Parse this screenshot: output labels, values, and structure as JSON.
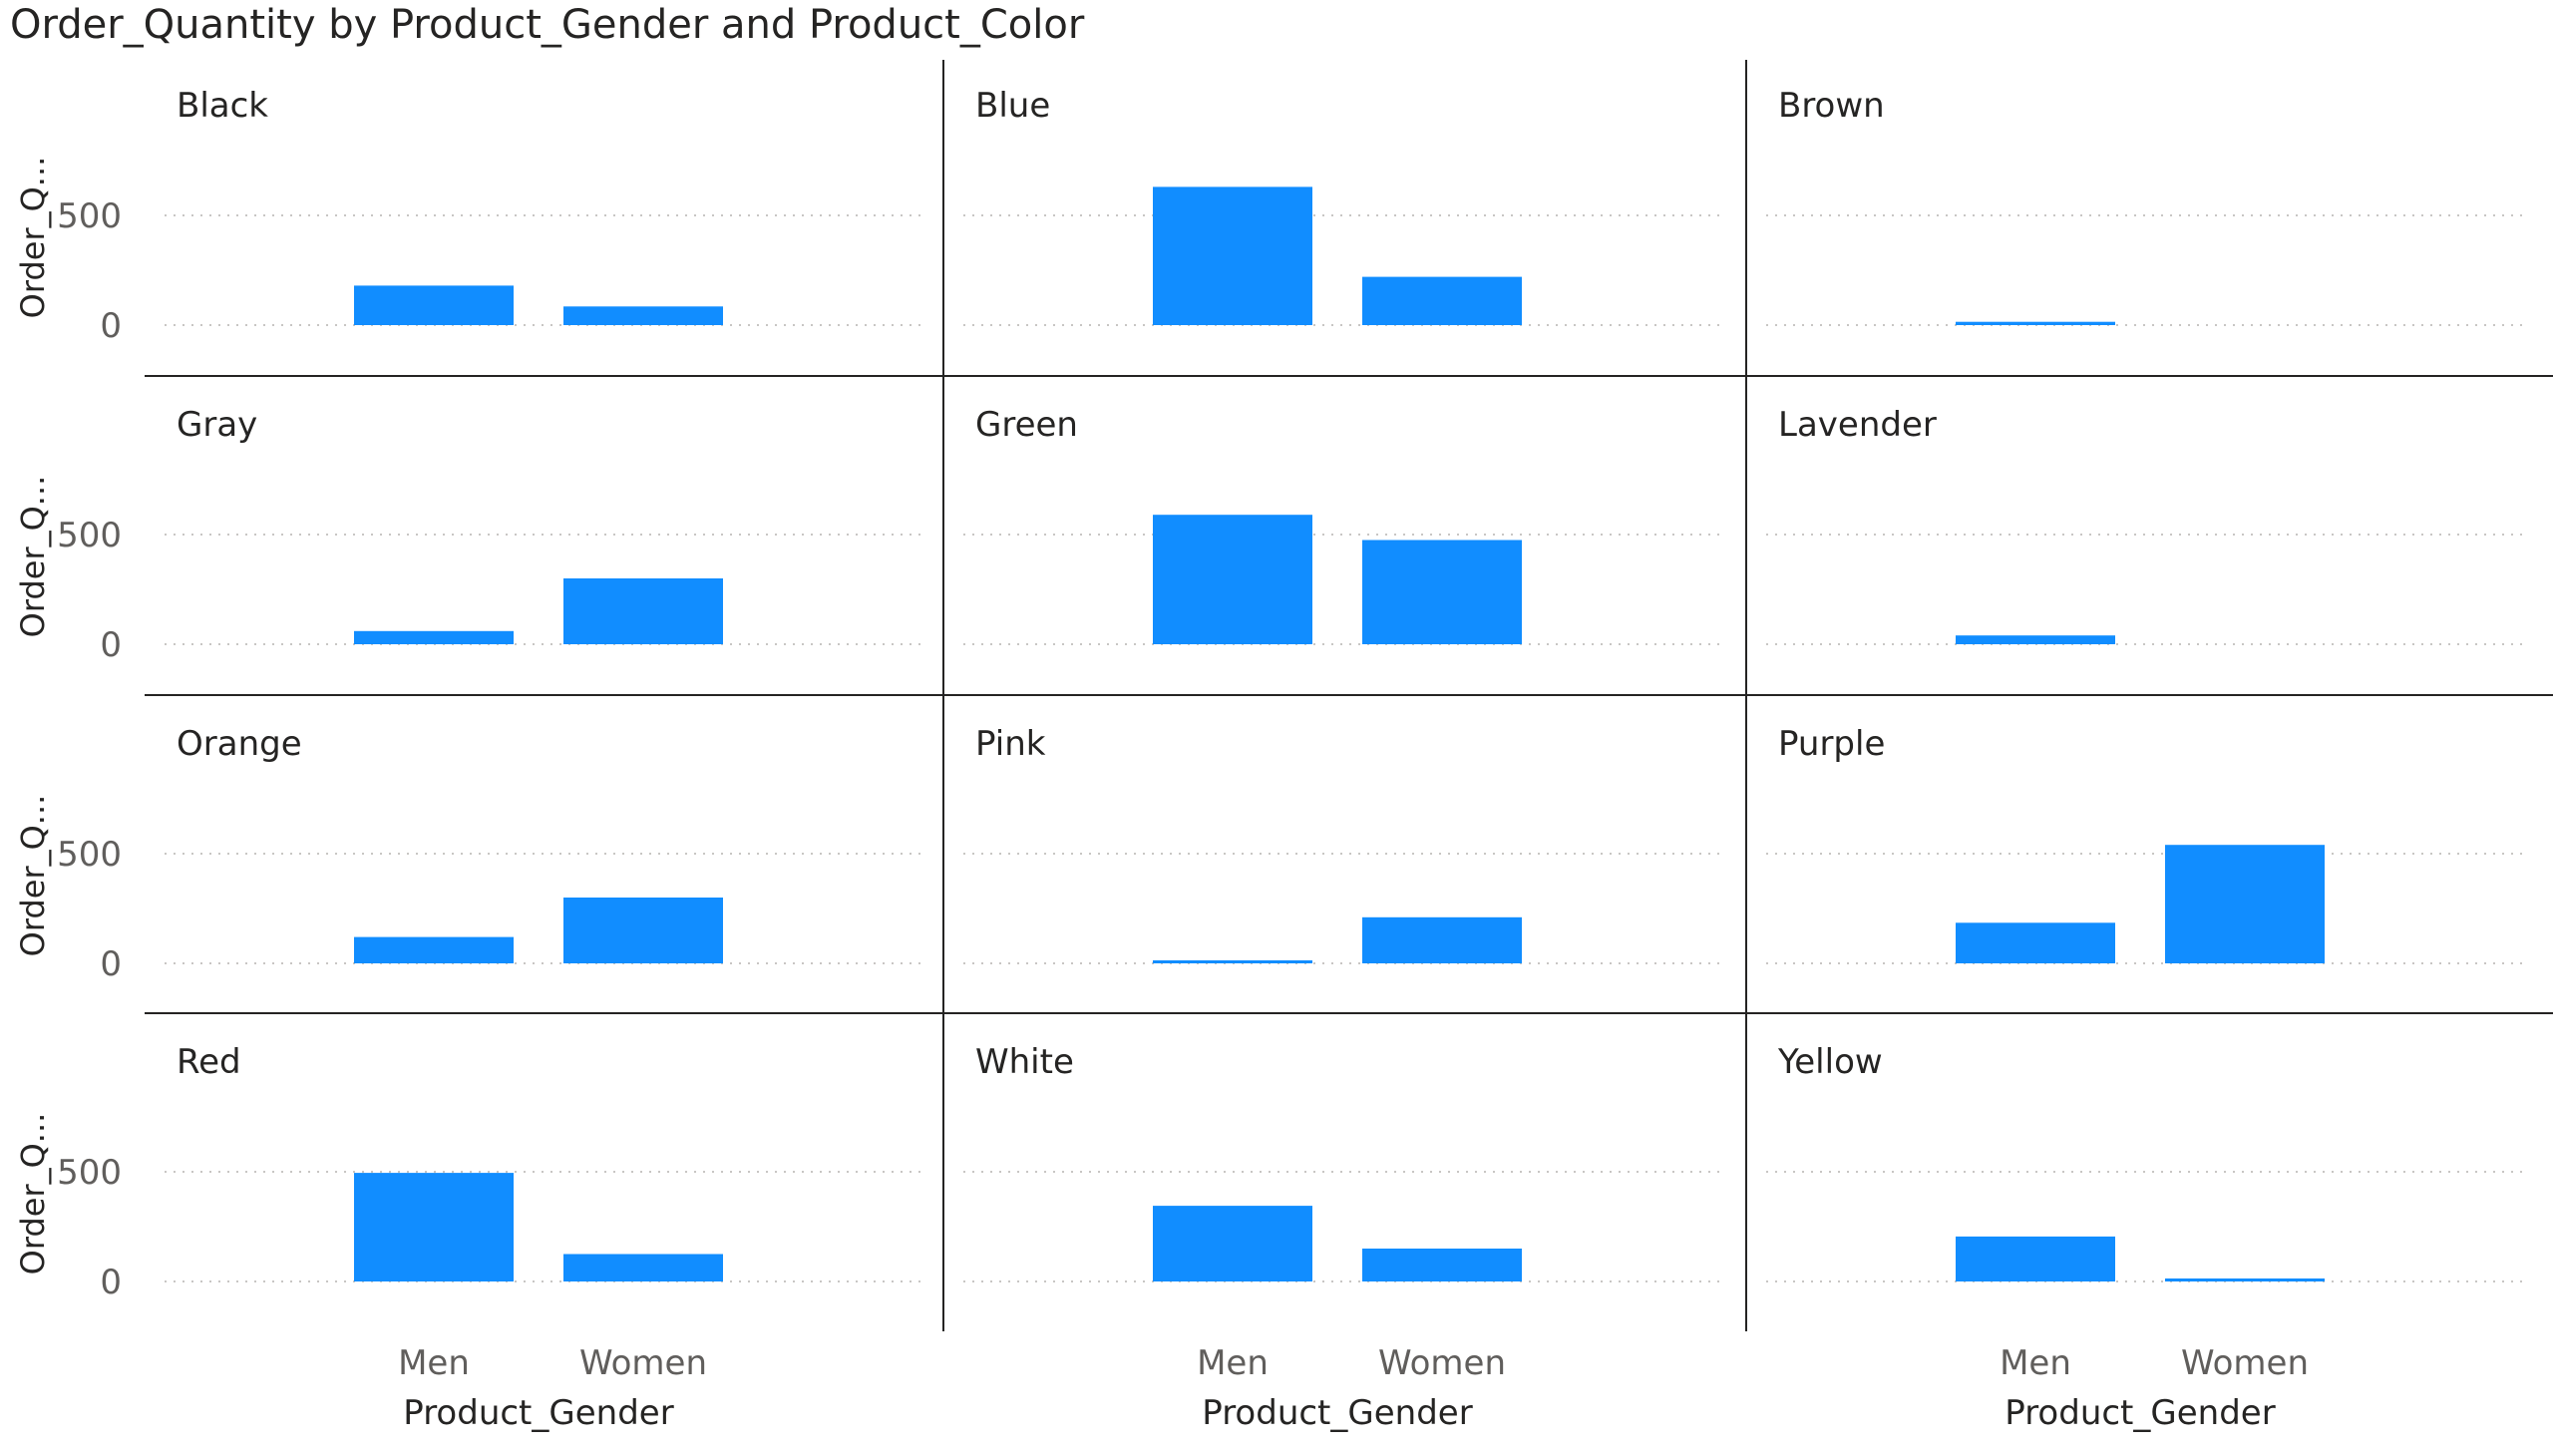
{
  "chart_data": {
    "type": "bar",
    "title": "Order_Quantity by Product_Gender and Product_Color",
    "xlabel": "Product_Gender",
    "ylabel": "Order_Q...",
    "categories": [
      "Men",
      "Women"
    ],
    "yticks": [
      0,
      500
    ],
    "ylim": [
      0,
      700
    ],
    "grid": true,
    "bar_color": "#118DFF",
    "panels": [
      {
        "name": "Black",
        "values": [
          180,
          85
        ]
      },
      {
        "name": "Blue",
        "values": [
          630,
          220
        ]
      },
      {
        "name": "Brown",
        "values": [
          15,
          0
        ]
      },
      {
        "name": "Gray",
        "values": [
          60,
          300
        ]
      },
      {
        "name": "Green",
        "values": [
          590,
          475
        ]
      },
      {
        "name": "Lavender",
        "values": [
          40,
          0
        ]
      },
      {
        "name": "Orange",
        "values": [
          120,
          300
        ]
      },
      {
        "name": "Pink",
        "values": [
          5,
          210
        ]
      },
      {
        "name": "Purple",
        "values": [
          185,
          540
        ]
      },
      {
        "name": "Red",
        "values": [
          495,
          125
        ]
      },
      {
        "name": "White",
        "values": [
          345,
          150
        ]
      },
      {
        "name": "Yellow",
        "values": [
          205,
          10
        ]
      }
    ]
  }
}
